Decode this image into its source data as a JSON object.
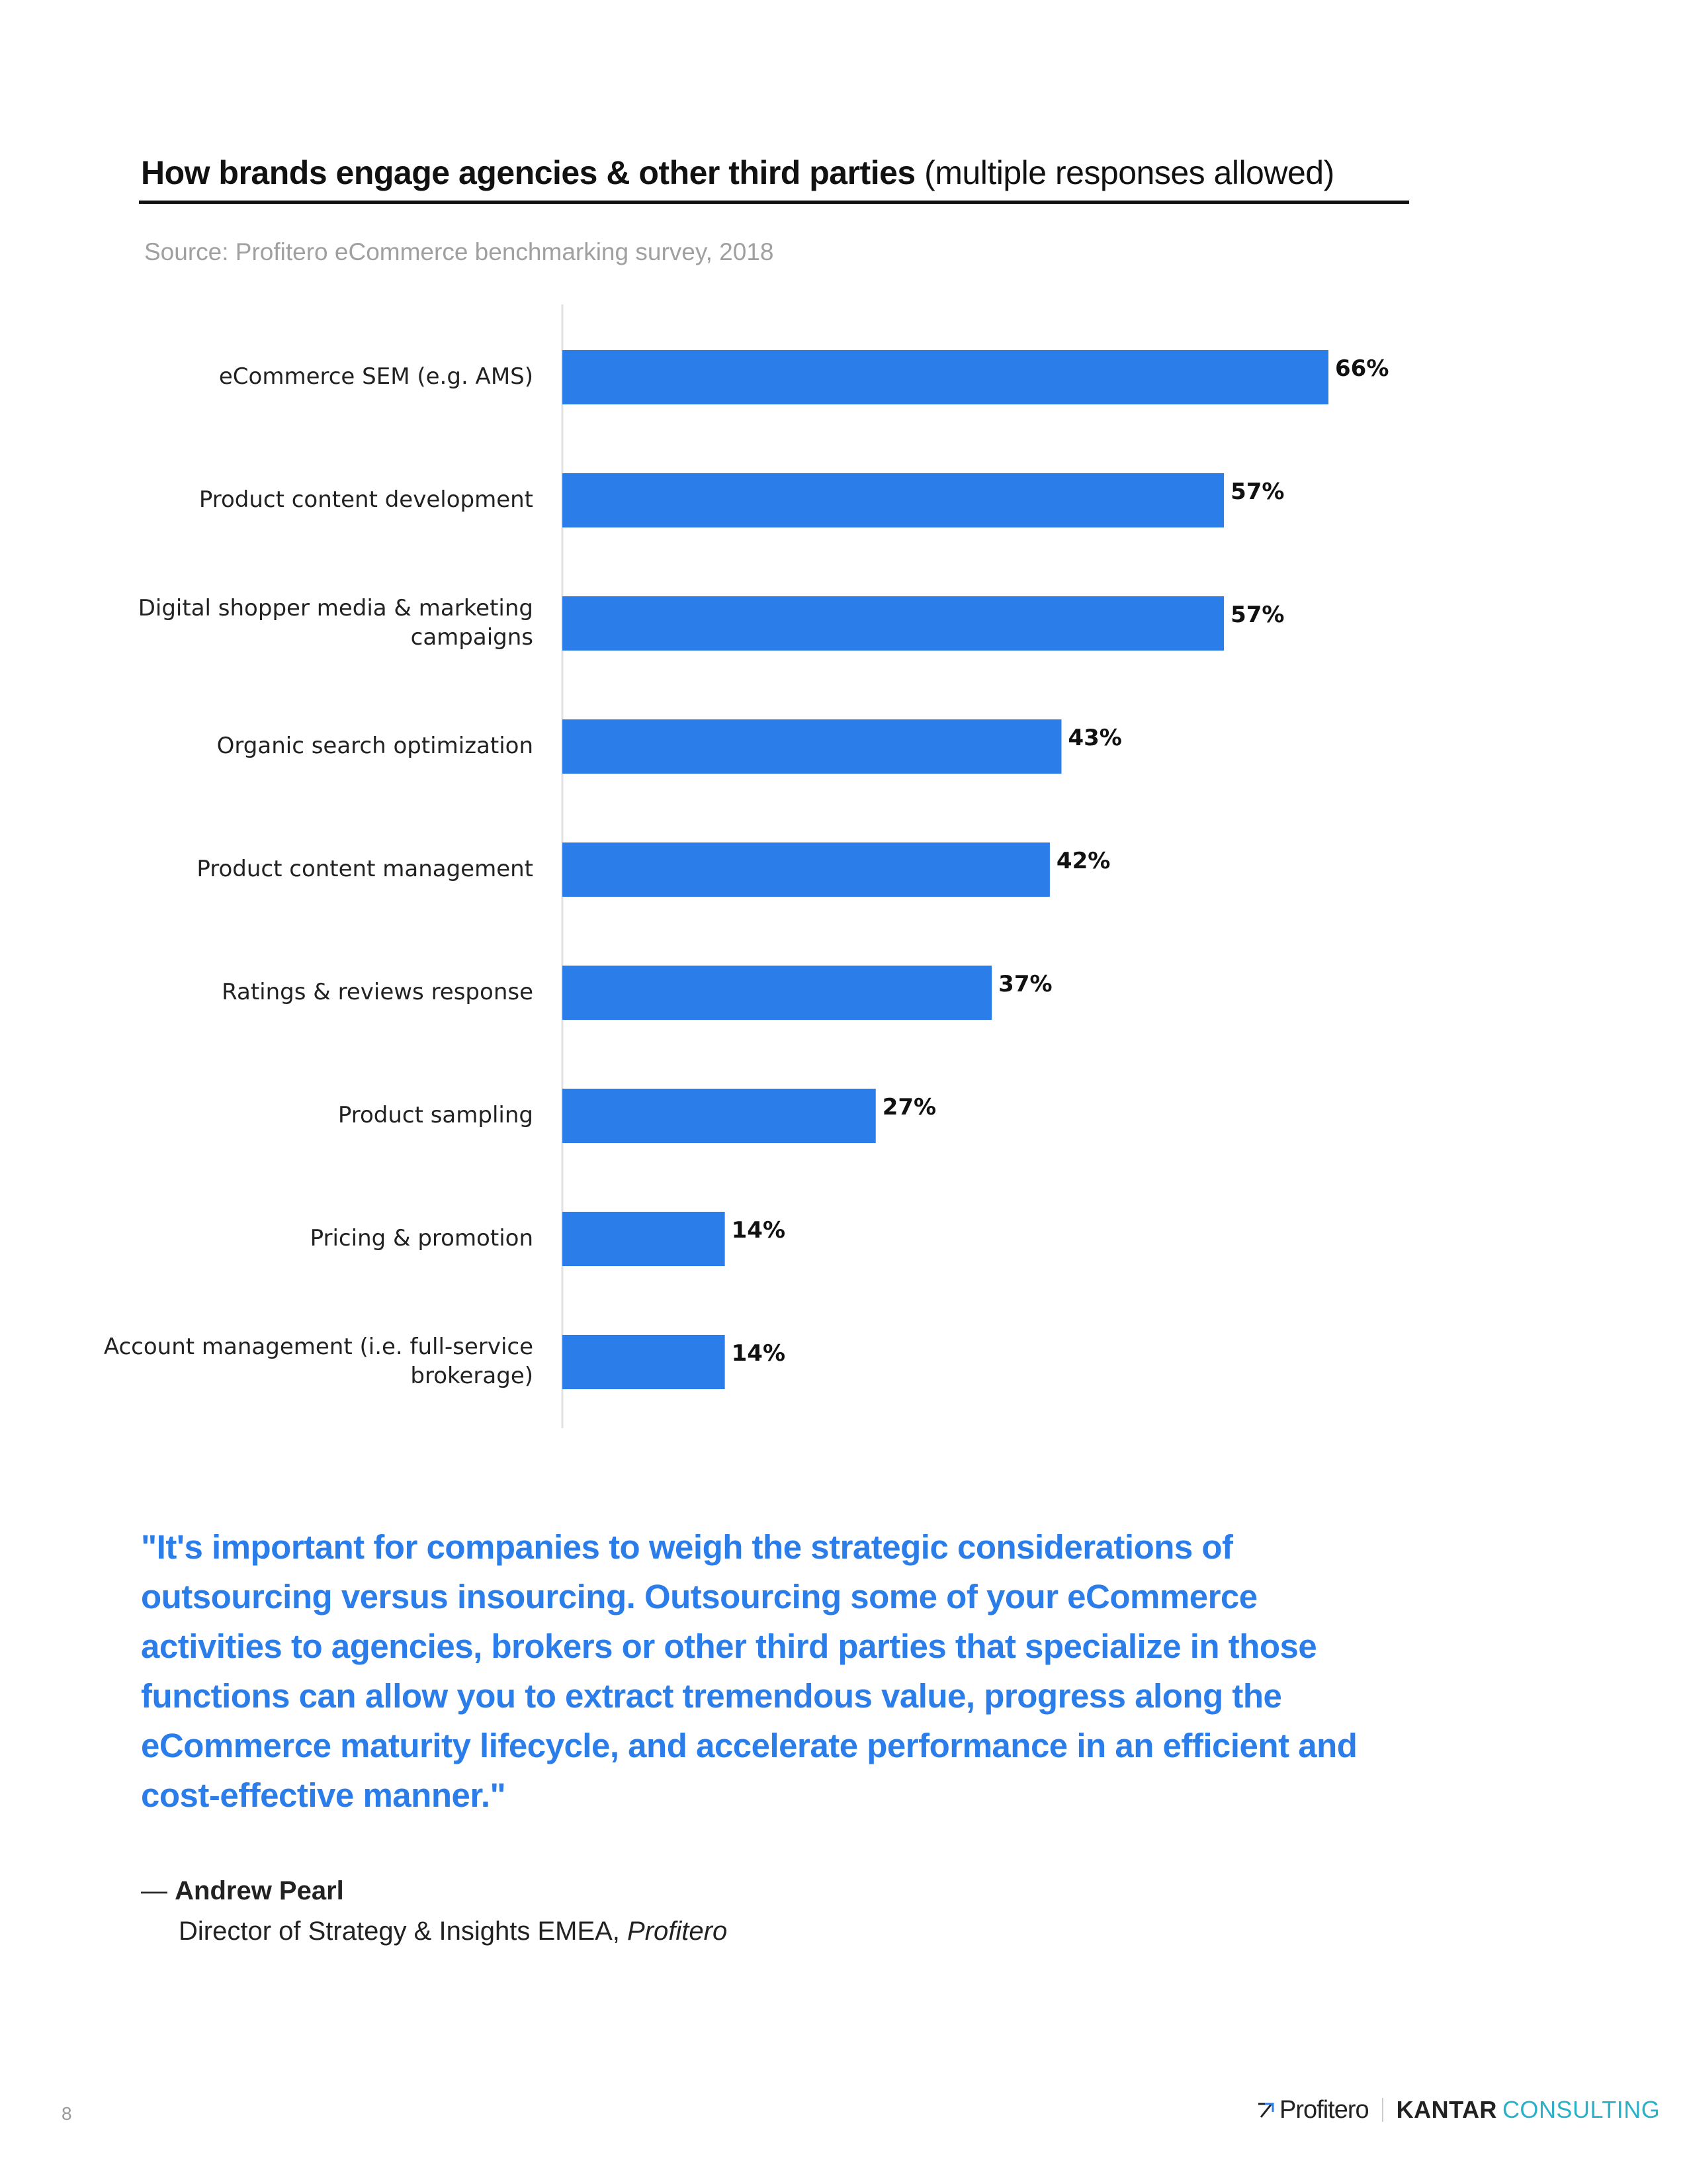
{
  "header": {
    "title_bold": "How brands engage agencies & other third parties",
    "title_light": "(multiple responses allowed)",
    "source": "Source: Profitero eCommerce benchmarking survey, 2018"
  },
  "colors": {
    "bar": "#2b7de9",
    "quote": "#2b7de9",
    "kantar_accent": "#2ab0c8"
  },
  "chart_data": {
    "type": "bar",
    "orientation": "horizontal",
    "title": "How brands engage agencies & other third parties (multiple responses allowed)",
    "categories": [
      [
        "eCommerce SEM (e.g. AMS)"
      ],
      [
        "Product content development"
      ],
      [
        "Digital shopper media & marketing",
        "campaigns"
      ],
      [
        "Organic search optimization"
      ],
      [
        "Product content management"
      ],
      [
        "Ratings & reviews response"
      ],
      [
        "Product sampling"
      ],
      [
        "Pricing & promotion"
      ],
      [
        "Account management (i.e. full-service",
        "brokerage)"
      ]
    ],
    "values": [
      66,
      57,
      57,
      43,
      42,
      37,
      27,
      14,
      14
    ],
    "value_labels": [
      "66%",
      "57%",
      "57%",
      "43%",
      "42%",
      "37%",
      "27%",
      "14%",
      "14%"
    ],
    "xlim": [
      0,
      70
    ],
    "unit": "%",
    "xlabel": "",
    "ylabel": "",
    "grid": false
  },
  "quote": {
    "text": "\"It's important for companies to weigh the strategic considerations of outsourcing versus insourcing. Outsourcing some of your eCommerce activities to agencies, brokers or other third parties that specialize in those functions can allow you to extract tremendous value, progress along the eCommerce maturity lifecycle, and accelerate performance in an efficient and cost-effective manner.\"",
    "dash": "—",
    "author": "Andrew Pearl",
    "role": "Director of Strategy & Insights EMEA,",
    "company": "Profitero"
  },
  "footer": {
    "page_number": "8",
    "logo_profitero": "Profitero",
    "logo_kantar": "KANTAR",
    "logo_consulting": "CONSULTING"
  }
}
